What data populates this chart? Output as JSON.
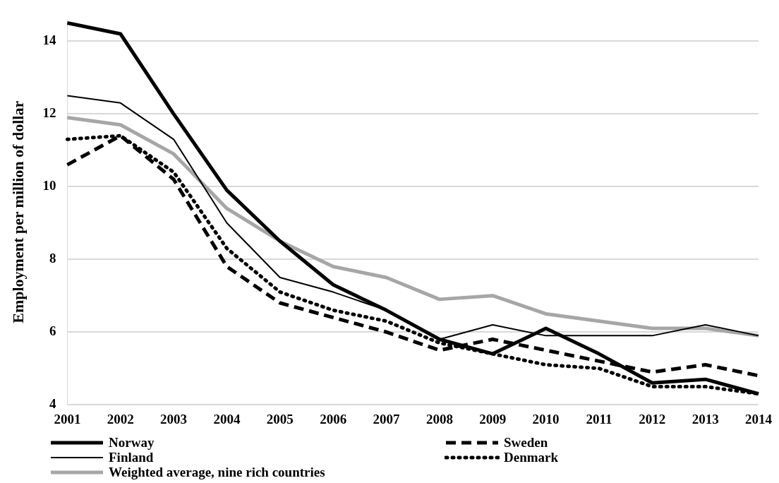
{
  "chart_data": {
    "type": "line",
    "ylabel": "Employment per million of dollar",
    "categories": [
      "2001",
      "2002",
      "2003",
      "2004",
      "2005",
      "2006",
      "2007",
      "2008",
      "2009",
      "2010",
      "2011",
      "2012",
      "2013",
      "2014"
    ],
    "series": [
      {
        "name": "Norway",
        "color": "#000000",
        "line_style": "solid",
        "values": [
          14.5,
          14.2,
          12.0,
          9.9,
          8.5,
          7.3,
          6.6,
          5.8,
          5.4,
          6.1,
          5.4,
          4.6,
          4.7,
          4.3
        ]
      },
      {
        "name": "Sweden",
        "color": "#000000",
        "line_style": "dashed",
        "values": [
          10.6,
          11.4,
          10.2,
          7.8,
          6.8,
          6.4,
          6.0,
          5.5,
          5.8,
          5.5,
          5.2,
          4.9,
          5.1,
          4.8
        ]
      },
      {
        "name": "Finland",
        "color": "#000000",
        "line_style": "solid",
        "values": [
          12.5,
          12.3,
          11.3,
          9.0,
          7.5,
          7.1,
          6.6,
          5.8,
          6.2,
          5.9,
          5.9,
          5.9,
          6.2,
          5.9
        ]
      },
      {
        "name": "Denmark",
        "color": "#000000",
        "line_style": "dotted",
        "values": [
          11.3,
          11.4,
          10.4,
          8.3,
          7.1,
          6.6,
          6.3,
          5.7,
          5.4,
          5.1,
          5.0,
          4.5,
          4.5,
          4.3
        ]
      },
      {
        "name": "Weighted average, nine rich countries",
        "color": "#a6a6a6",
        "line_style": "solid",
        "values": [
          11.9,
          11.7,
          10.9,
          9.4,
          8.5,
          7.8,
          7.5,
          6.9,
          7.0,
          6.5,
          6.3,
          6.1,
          6.1,
          5.9
        ]
      }
    ],
    "ylim": [
      4,
      14.6
    ],
    "yticks": [
      4,
      6,
      8,
      10,
      12,
      14
    ],
    "grid": "y",
    "legend": "bottom",
    "marker": "none"
  }
}
